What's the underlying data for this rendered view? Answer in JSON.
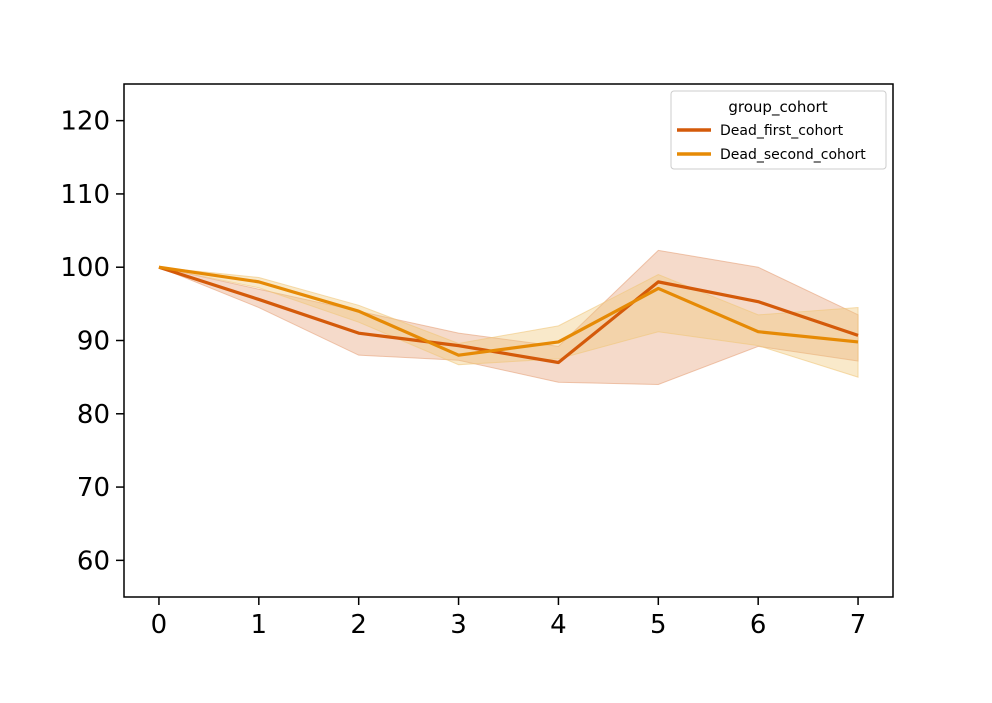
{
  "chart_data": {
    "type": "line",
    "title": "",
    "xlabel": "",
    "ylabel": "",
    "x": [
      0,
      1,
      2,
      3,
      4,
      5,
      6,
      7
    ],
    "xlim": [
      -0.35,
      7.35
    ],
    "ylim": [
      55,
      125
    ],
    "xticks": [
      0,
      1,
      2,
      3,
      4,
      5,
      6,
      7
    ],
    "yticks": [
      60,
      70,
      80,
      90,
      100,
      110,
      120
    ],
    "grid": false,
    "legend": {
      "title": "group_cohort",
      "placement": "top-right"
    },
    "series": [
      {
        "name": "Dead_first_cohort",
        "color": "#d45a0a",
        "band_color": "#e6a27a",
        "values": [
          100,
          95.6,
          91,
          89.3,
          87,
          98,
          95.3,
          90.7
        ],
        "ci_lower": [
          100,
          94.5,
          88,
          87.3,
          84.3,
          84,
          89.2,
          87.2
        ],
        "ci_upper": [
          100,
          97,
          94,
          91,
          89.2,
          102.3,
          100,
          93.5
        ]
      },
      {
        "name": "Dead_second_cohort",
        "color": "#e68a05",
        "band_color": "#f0c77a",
        "values": [
          100,
          98,
          94,
          88,
          89.8,
          97.1,
          91.2,
          89.8
        ],
        "ci_lower": [
          100,
          97.2,
          92.5,
          86.7,
          87.5,
          91.2,
          89.3,
          85
        ],
        "ci_upper": [
          100,
          98.6,
          94.8,
          89.6,
          92,
          99,
          93.5,
          94.5
        ]
      }
    ]
  }
}
